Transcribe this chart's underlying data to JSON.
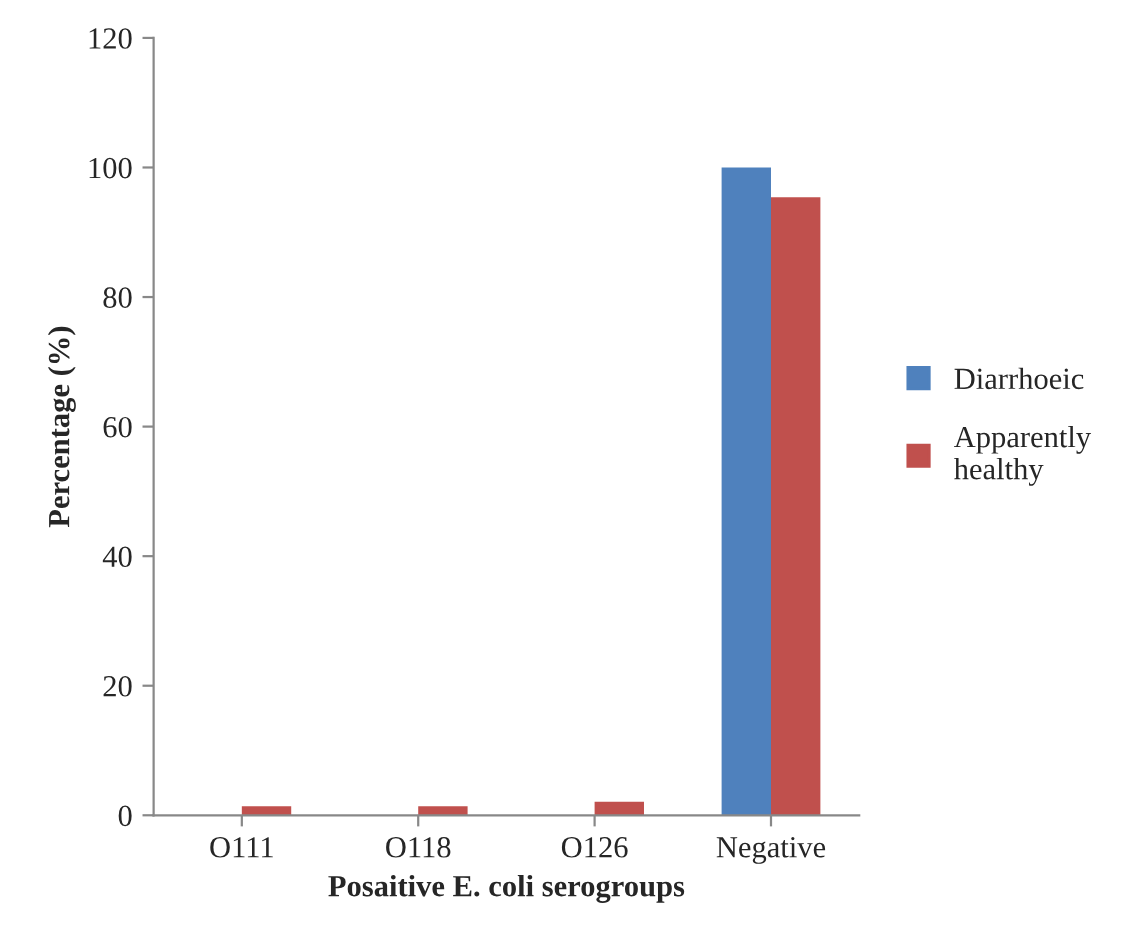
{
  "chart_data": {
    "type": "bar",
    "xlabel": "Posaitive E. coli serogroups",
    "ylabel": "Percentage (%)",
    "categories": [
      "O111",
      "O118",
      "O126",
      "Negative"
    ],
    "series": [
      {
        "name": "Diarrhoeic",
        "color": "#4f81bd",
        "values": [
          0,
          0,
          0,
          100
        ]
      },
      {
        "name": "Apparently\nhealthy",
        "color": "#c0504d",
        "values": [
          1.4,
          1.4,
          2.1,
          95.4
        ]
      }
    ],
    "ylim": [
      0,
      120
    ],
    "yticks": [
      0,
      20,
      40,
      60,
      80,
      100,
      120
    ],
    "grid": false,
    "legend": "right"
  }
}
